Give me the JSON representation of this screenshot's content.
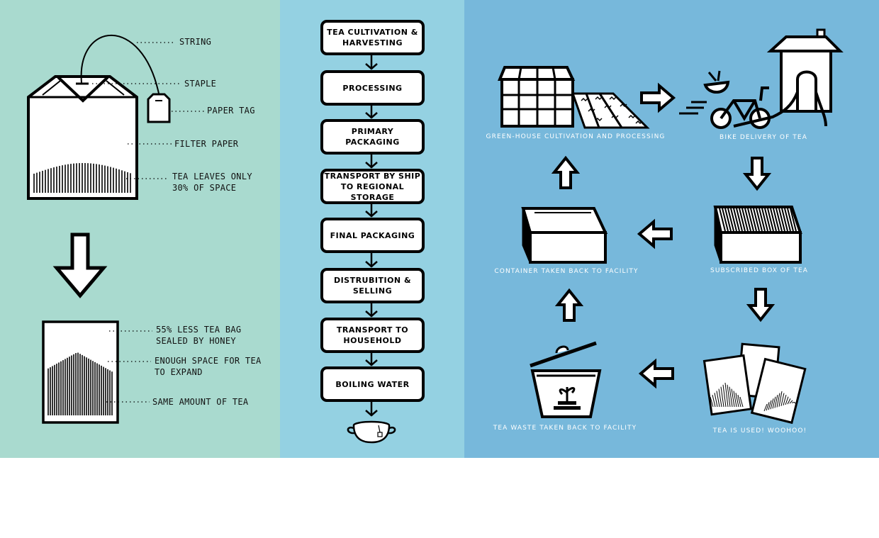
{
  "colors": {
    "left_panel": "#a9dacf",
    "middle_panel": "#94d1e2",
    "right_panel": "#77b8db",
    "stroke": "#000000",
    "box_fill": "#ffffff"
  },
  "teabag_labels": {
    "string": "STRING",
    "staple": "STAPLE",
    "paper_tag": "PAPER TAG",
    "filter_paper": "FILTER PAPER",
    "tea_leaves": [
      "TEA LEAVES ONLY",
      "30% OF SPACE"
    ]
  },
  "new_bag_labels": {
    "less_bag": [
      "55% LESS TEA BAG",
      "SEALED BY HONEY"
    ],
    "space": [
      "ENOUGH SPACE FOR TEA",
      "TO EXPAND"
    ],
    "same_amount": "SAME AMOUNT OF TEA"
  },
  "process_steps": [
    [
      "TEA CULTIVATION &",
      "HARVESTING"
    ],
    [
      "PROCESSING"
    ],
    [
      "PRIMARY PACKAGING"
    ],
    [
      "TRANSPORT BY SHIP",
      "TO REGIONAL STORAGE"
    ],
    [
      "FINAL PACKAGING"
    ],
    [
      "DISTRUBITION &",
      "SELLING"
    ],
    [
      "TRANSPORT TO",
      "HOUSEHOLD"
    ],
    [
      "BOILING WATER"
    ]
  ],
  "cycle_captions": {
    "greenhouse": "GREEN-HOUSE CULTIVATION AND PROCESSING",
    "bike": "BIKE DELIVERY OF TEA",
    "container": "CONTAINER TAKEN BACK TO FACILITY",
    "subscribed": "SUBSCRIBED BOX OF TEA",
    "waste": "TEA WASTE TAKEN BACK TO FACILITY",
    "used": "TEA IS USED! WOOHOO!"
  },
  "icons": [
    "teabag-icon",
    "down-arrow-icon",
    "new-teabag-icon",
    "teacup-icon",
    "greenhouse-icon",
    "field-icon",
    "bike-icon",
    "house-icon",
    "box-icon",
    "compost-bin-icon",
    "used-teabags-icon"
  ]
}
